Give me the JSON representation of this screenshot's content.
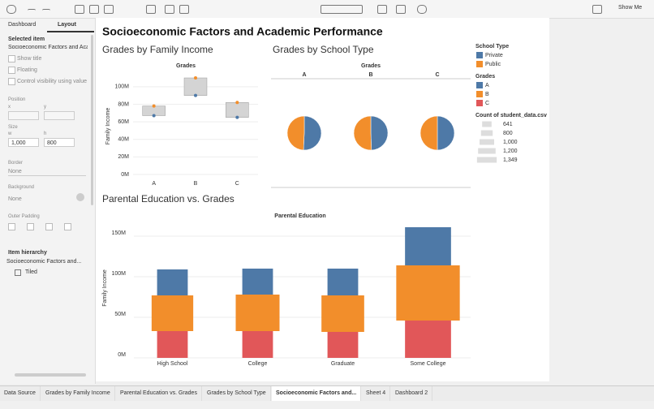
{
  "toolbar": {
    "show_me": "Show Me"
  },
  "sidebar": {
    "tabs": [
      "Dashboard",
      "Layout"
    ],
    "selected_item_label": "Selected item",
    "selected_item": "Socioeconomic Factors and Aca",
    "checkboxes": [
      "Show title",
      "Floating",
      "Control visibility using value"
    ],
    "position": "Position",
    "x": "x",
    "y": "y",
    "size": "Size",
    "w": "w",
    "h": "h",
    "w_value": "1,000",
    "h_value": "800",
    "border": "Border",
    "border_value": "None",
    "background": "Background",
    "background_value": "None",
    "outer_padding": "Outer Padding",
    "item_hierarchy": "Item hierarchy",
    "hierarchy_item": "Socioeconomic Factors and...",
    "tiled": "Tiled"
  },
  "dashboard_title": "Socioeconomic Factors and Academic Performance",
  "legends": {
    "school_type": {
      "title": "School Type",
      "items": [
        {
          "name": "Private",
          "color": "#4e79a7"
        },
        {
          "name": "Public",
          "color": "#f28e2b"
        }
      ]
    },
    "grades": {
      "title": "Grades",
      "items": [
        {
          "name": "A",
          "color": "#4e79a7"
        },
        {
          "name": "B",
          "color": "#f28e2b"
        },
        {
          "name": "C",
          "color": "#e15759"
        }
      ]
    },
    "count": {
      "title": "Count of student_data.csv",
      "values": [
        641,
        800,
        1000,
        1200,
        1349
      ],
      "value_labels": [
        "641",
        "800",
        "1,000",
        "1,200",
        "1,349"
      ]
    }
  },
  "chart_data": [
    {
      "type": "range-dot",
      "title": "Grades by Family Income",
      "header": "Grades",
      "y_label": "Family Income",
      "categories": [
        "A",
        "B",
        "C"
      ],
      "series": [
        {
          "name": "Private",
          "color": "#4e79a7",
          "values": [
            67000000,
            90000000,
            65000000
          ]
        },
        {
          "name": "Public",
          "color": "#f28e2b",
          "values": [
            78000000,
            110000000,
            82000000
          ]
        }
      ],
      "ylim": [
        0,
        110000000
      ],
      "yticks": [
        {
          "value": 0,
          "label": "0M"
        },
        {
          "value": 20000000,
          "label": "20M"
        },
        {
          "value": 40000000,
          "label": "40M"
        },
        {
          "value": 60000000,
          "label": "60M"
        },
        {
          "value": 80000000,
          "label": "80M"
        },
        {
          "value": 100000000,
          "label": "100M"
        }
      ]
    },
    {
      "type": "pie",
      "title": "Grades by School Type",
      "header": "Grades",
      "categories": [
        "A",
        "B",
        "C"
      ],
      "series": [
        {
          "name": "Private",
          "color": "#4e79a7",
          "values": [
            330,
            400,
            330
          ]
        },
        {
          "name": "Public",
          "color": "#f28e2b",
          "values": [
            320,
            410,
            330
          ]
        }
      ]
    },
    {
      "type": "stacked-bar",
      "title": "Parental Education vs. Grades",
      "header": "Parental Education",
      "y_label": "Family Income",
      "categories": [
        "High School",
        "College",
        "Graduate",
        "Some College"
      ],
      "series": [
        {
          "name": "A",
          "color": "#4e79a7",
          "values": [
            32000000,
            32000000,
            33000000,
            47000000
          ],
          "counts": [
            280,
            280,
            280,
            420
          ]
        },
        {
          "name": "B",
          "color": "#f28e2b",
          "values": [
            44000000,
            45000000,
            45000000,
            68000000
          ],
          "counts": [
            380,
            400,
            390,
            580
          ]
        },
        {
          "name": "C",
          "color": "#e15759",
          "values": [
            33000000,
            33000000,
            32000000,
            46000000
          ],
          "counts": [
            280,
            280,
            280,
            420
          ]
        }
      ],
      "ylim": [
        0,
        165000000
      ],
      "yticks": [
        {
          "value": 0,
          "label": "0M"
        },
        {
          "value": 50000000,
          "label": "50M"
        },
        {
          "value": 100000000,
          "label": "100M"
        },
        {
          "value": 150000000,
          "label": "150M"
        }
      ]
    }
  ],
  "tabs": {
    "items": [
      "Data Source",
      "Grades by Family Income",
      "Parental Education vs. Grades",
      "Grades by School Type",
      "Socioeconomic Factors and...",
      "Sheet 4",
      "Dashboard 2"
    ],
    "active": 4
  }
}
